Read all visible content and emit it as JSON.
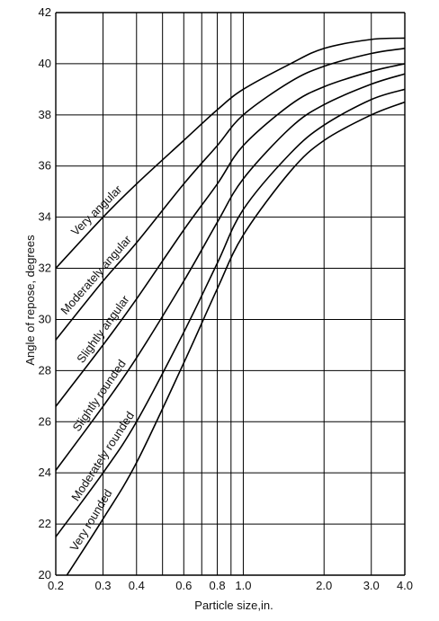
{
  "chart_data": {
    "type": "line",
    "title": "",
    "xlabel": "Particle size,in.",
    "ylabel": "Angle of repose, degrees",
    "x_scale": "log",
    "xlim": [
      0.2,
      4.0
    ],
    "ylim": [
      20,
      42
    ],
    "x_ticks": [
      0.2,
      0.3,
      0.4,
      0.5,
      0.6,
      0.7,
      0.8,
      0.9,
      1.0,
      2.0,
      3.0,
      4.0
    ],
    "x_tick_labels": [
      {
        "value": 0.2,
        "label": "0.2"
      },
      {
        "value": 0.3,
        "label": "0.3"
      },
      {
        "value": 0.4,
        "label": "0.4"
      },
      {
        "value": 0.6,
        "label": "0.6"
      },
      {
        "value": 0.8,
        "label": "0.8"
      },
      {
        "value": 1.0,
        "label": "1.0"
      },
      {
        "value": 2.0,
        "label": "2.0"
      },
      {
        "value": 3.0,
        "label": "3.0"
      },
      {
        "value": 4.0,
        "label": "4.0"
      }
    ],
    "y_ticks": [
      20,
      22,
      24,
      26,
      28,
      30,
      32,
      34,
      36,
      38,
      40,
      42
    ],
    "grid": true,
    "series": [
      {
        "name": "Very angular",
        "x": [
          0.2,
          0.3,
          0.4,
          0.6,
          0.8,
          1.0,
          1.5,
          2.0,
          3.0,
          4.0
        ],
        "y": [
          32.0,
          34.0,
          35.3,
          37.0,
          38.2,
          39.0,
          40.0,
          40.6,
          40.95,
          41.0
        ]
      },
      {
        "name": "Moderately angular",
        "x": [
          0.2,
          0.3,
          0.4,
          0.6,
          0.8,
          1.0,
          1.5,
          2.0,
          3.0,
          4.0
        ],
        "y": [
          29.2,
          31.5,
          33.0,
          35.3,
          36.8,
          38.0,
          39.3,
          39.9,
          40.4,
          40.6
        ]
      },
      {
        "name": "Slightly angular",
        "x": [
          0.2,
          0.3,
          0.4,
          0.6,
          0.8,
          1.0,
          1.5,
          2.0,
          3.0,
          4.0
        ],
        "y": [
          26.6,
          29.0,
          30.8,
          33.5,
          35.3,
          36.8,
          38.4,
          39.1,
          39.7,
          40.0
        ]
      },
      {
        "name": "Slightly rounded",
        "x": [
          0.2,
          0.3,
          0.4,
          0.6,
          0.8,
          1.0,
          1.5,
          2.0,
          3.0,
          4.0
        ],
        "y": [
          24.1,
          26.6,
          28.5,
          31.5,
          33.8,
          35.5,
          37.5,
          38.4,
          39.2,
          39.6
        ]
      },
      {
        "name": "Moderately rounded",
        "x": [
          0.2,
          0.3,
          0.4,
          0.6,
          0.8,
          1.0,
          1.5,
          2.0,
          3.0,
          4.0
        ],
        "y": [
          21.5,
          24.0,
          26.0,
          29.5,
          32.2,
          34.3,
          36.5,
          37.6,
          38.6,
          39.0
        ]
      },
      {
        "name": "Very rounded",
        "x": [
          0.22,
          0.3,
          0.4,
          0.6,
          0.8,
          1.0,
          1.5,
          2.0,
          3.0,
          4.0
        ],
        "y": [
          20.0,
          22.2,
          24.4,
          28.3,
          31.2,
          33.3,
          35.8,
          37.0,
          38.0,
          38.5
        ]
      }
    ],
    "legend": "none"
  }
}
